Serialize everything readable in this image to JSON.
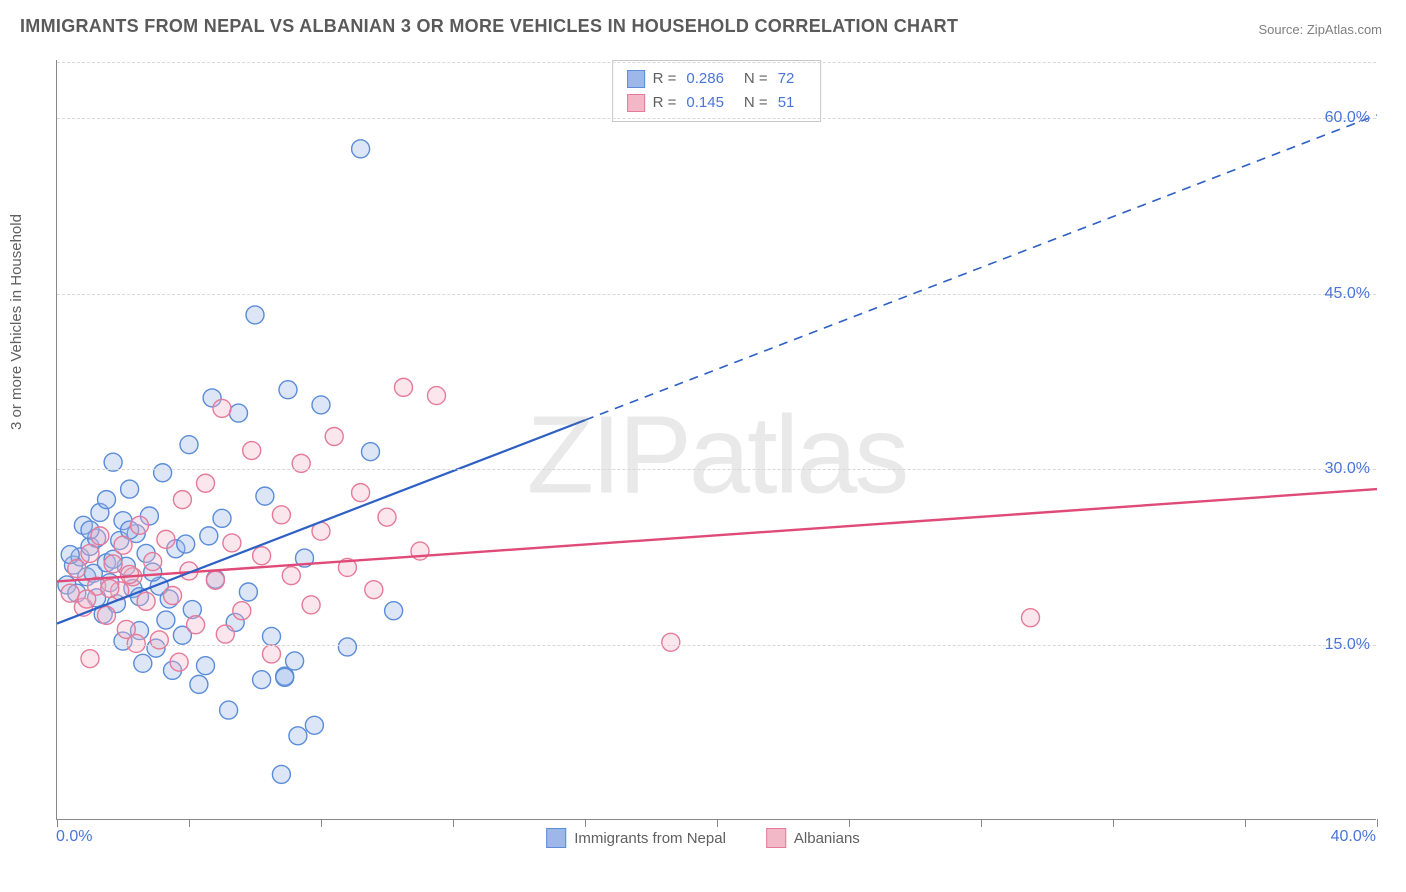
{
  "title": "IMMIGRANTS FROM NEPAL VS ALBANIAN 3 OR MORE VEHICLES IN HOUSEHOLD CORRELATION CHART",
  "source": "Source: ZipAtlas.com",
  "ylabel": "3 or more Vehicles in Household",
  "watermark": "ZIPatlas",
  "chart": {
    "type": "scatter-regression",
    "background_color": "#ffffff",
    "grid_color": "#d8d8d8",
    "axis_color": "#888888",
    "xlim": [
      0,
      40
    ],
    "ylim": [
      0,
      65
    ],
    "xtick_labels": [
      "0.0%",
      "40.0%"
    ],
    "ytick_values": [
      15,
      30,
      45,
      60
    ],
    "ytick_labels": [
      "15.0%",
      "30.0%",
      "45.0%",
      "60.0%"
    ],
    "xtick_positions": [
      0,
      4,
      8,
      12,
      16,
      20,
      24,
      28,
      32,
      36,
      40
    ],
    "marker_radius": 9,
    "marker_fill_opacity": 0.35,
    "marker_stroke_width": 1.4,
    "label_color": "#4a75d8",
    "text_color": "#606060",
    "title_color": "#5a5a5a",
    "title_fontsize": 18,
    "label_fontsize": 15,
    "tick_fontsize": 16
  },
  "series": [
    {
      "name": "Immigrants from Nepal",
      "color_fill": "#9db8e8",
      "color_stroke": "#5a8cd8",
      "R": "0.286",
      "N": "72",
      "regression": {
        "x1": 0,
        "y1": 16.8,
        "x2": 16,
        "y2": 34.2,
        "x3": 40,
        "y3": 60.3,
        "solid_end_x": 16,
        "stroke": "#2d5fc4",
        "width": 2.2
      },
      "points": [
        [
          0.3,
          20.1
        ],
        [
          0.5,
          21.8
        ],
        [
          0.6,
          19.4
        ],
        [
          0.7,
          22.5
        ],
        [
          0.8,
          25.2
        ],
        [
          0.9,
          20.8
        ],
        [
          1.0,
          23.4
        ],
        [
          1.1,
          21.1
        ],
        [
          1.2,
          19.0
        ],
        [
          1.2,
          24.1
        ],
        [
          1.3,
          26.3
        ],
        [
          1.4,
          17.6
        ],
        [
          1.5,
          22.0
        ],
        [
          1.5,
          27.4
        ],
        [
          1.6,
          20.3
        ],
        [
          1.7,
          30.6
        ],
        [
          1.8,
          18.5
        ],
        [
          1.9,
          23.9
        ],
        [
          2.0,
          25.6
        ],
        [
          2.0,
          15.3
        ],
        [
          2.1,
          21.7
        ],
        [
          2.2,
          28.3
        ],
        [
          2.3,
          19.8
        ],
        [
          2.4,
          24.5
        ],
        [
          2.5,
          16.2
        ],
        [
          2.6,
          13.4
        ],
        [
          2.7,
          22.8
        ],
        [
          2.8,
          26.0
        ],
        [
          3.0,
          14.7
        ],
        [
          3.1,
          20.0
        ],
        [
          3.2,
          29.7
        ],
        [
          3.3,
          17.1
        ],
        [
          3.5,
          12.8
        ],
        [
          3.6,
          23.2
        ],
        [
          3.8,
          15.8
        ],
        [
          4.0,
          32.1
        ],
        [
          4.1,
          18.0
        ],
        [
          4.3,
          11.6
        ],
        [
          4.5,
          13.2
        ],
        [
          4.7,
          36.1
        ],
        [
          5.0,
          25.8
        ],
        [
          5.2,
          9.4
        ],
        [
          5.5,
          34.8
        ],
        [
          5.8,
          19.5
        ],
        [
          6.0,
          43.2
        ],
        [
          6.2,
          12.0
        ],
        [
          6.5,
          15.7
        ],
        [
          6.8,
          3.9
        ],
        [
          7.0,
          36.8
        ],
        [
          7.2,
          13.6
        ],
        [
          7.5,
          22.4
        ],
        [
          7.8,
          8.1
        ],
        [
          8.0,
          35.5
        ],
        [
          6.9,
          12.3
        ],
        [
          6.9,
          12.2
        ],
        [
          8.8,
          14.8
        ],
        [
          9.2,
          57.4
        ],
        [
          9.5,
          31.5
        ],
        [
          7.3,
          7.2
        ],
        [
          10.2,
          17.9
        ],
        [
          3.9,
          23.6
        ],
        [
          4.6,
          24.3
        ],
        [
          5.4,
          16.9
        ],
        [
          2.9,
          21.2
        ],
        [
          1.0,
          24.8
        ],
        [
          0.4,
          22.7
        ],
        [
          2.2,
          24.8
        ],
        [
          3.4,
          18.9
        ],
        [
          4.8,
          20.6
        ],
        [
          6.3,
          27.7
        ],
        [
          1.7,
          22.3
        ],
        [
          2.5,
          19.1
        ]
      ]
    },
    {
      "name": "Albanians",
      "color_fill": "#f2b8c8",
      "color_stroke": "#e57a9a",
      "R": "0.145",
      "N": "51",
      "regression": {
        "x1": 0,
        "y1": 20.4,
        "x2": 40,
        "y2": 28.3,
        "stroke": "#e04a78",
        "width": 2.4
      },
      "points": [
        [
          0.4,
          19.4
        ],
        [
          0.6,
          21.5
        ],
        [
          0.8,
          18.2
        ],
        [
          1.0,
          22.8
        ],
        [
          1.2,
          20.0
        ],
        [
          1.3,
          24.3
        ],
        [
          1.5,
          17.5
        ],
        [
          1.7,
          21.9
        ],
        [
          1.9,
          19.6
        ],
        [
          2.0,
          23.5
        ],
        [
          2.1,
          16.3
        ],
        [
          2.3,
          20.8
        ],
        [
          2.5,
          25.2
        ],
        [
          2.7,
          18.7
        ],
        [
          2.9,
          22.1
        ],
        [
          3.1,
          15.4
        ],
        [
          3.3,
          24.0
        ],
        [
          3.5,
          19.2
        ],
        [
          3.8,
          27.4
        ],
        [
          4.0,
          21.3
        ],
        [
          4.2,
          16.7
        ],
        [
          4.5,
          28.8
        ],
        [
          4.8,
          20.5
        ],
        [
          5.0,
          35.2
        ],
        [
          5.3,
          23.7
        ],
        [
          5.6,
          17.9
        ],
        [
          5.9,
          31.6
        ],
        [
          6.2,
          22.6
        ],
        [
          6.5,
          14.2
        ],
        [
          6.8,
          26.1
        ],
        [
          7.1,
          20.9
        ],
        [
          7.4,
          30.5
        ],
        [
          7.7,
          18.4
        ],
        [
          8.0,
          24.7
        ],
        [
          8.4,
          32.8
        ],
        [
          8.8,
          21.6
        ],
        [
          9.2,
          28.0
        ],
        [
          9.6,
          19.7
        ],
        [
          10.0,
          25.9
        ],
        [
          10.5,
          37.0
        ],
        [
          11.0,
          23.0
        ],
        [
          11.5,
          36.3
        ],
        [
          1.0,
          13.8
        ],
        [
          2.4,
          15.1
        ],
        [
          3.7,
          13.5
        ],
        [
          5.1,
          15.9
        ],
        [
          18.6,
          15.2
        ],
        [
          29.5,
          17.3
        ],
        [
          0.9,
          18.9
        ],
        [
          1.6,
          19.8
        ],
        [
          2.2,
          21.0
        ]
      ]
    }
  ],
  "bottom_legend": [
    {
      "label": "Immigrants from Nepal",
      "fill": "#9db8e8",
      "stroke": "#5a8cd8"
    },
    {
      "label": "Albanians",
      "fill": "#f2b8c8",
      "stroke": "#e57a9a"
    }
  ]
}
